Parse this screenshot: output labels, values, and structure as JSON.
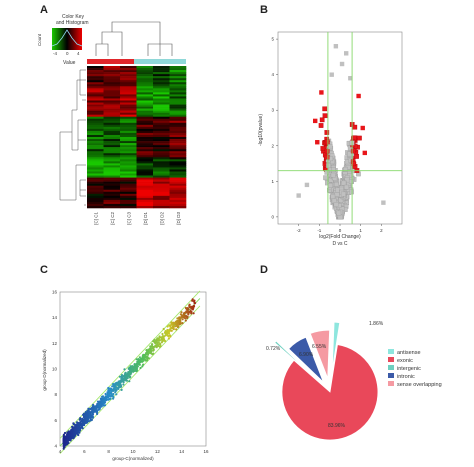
{
  "panels": {
    "a": "A",
    "b": "B",
    "c": "C",
    "d": "D"
  },
  "heatmap": {
    "key_title_line1": "Color Key",
    "key_title_line2": "and Histogram",
    "key_ylabel": "Count",
    "key_xlabel": "Value",
    "key_ticks": [
      "-4",
      "0",
      "4"
    ],
    "sample_labels": [
      "[C] C1",
      "[C] C2",
      "[C] C3",
      "[D] D1",
      "[D] D2",
      "[D] D3"
    ],
    "group_colors": [
      "#e0262b",
      "#8fd8d8"
    ],
    "colors": {
      "low": "#19c800",
      "mid": "#000000",
      "high": "#ee0000"
    }
  },
  "chart_data": [
    {
      "type": "scatter",
      "panel": "B",
      "xlabel": "log2(Fold Change)",
      "xlabel2": "D vs C",
      "ylabel": "-log10(pvalue)",
      "xlim": [
        -3,
        3
      ],
      "ylim": [
        -0.2,
        5.2
      ],
      "xticks": [
        "-2",
        "-1",
        "0",
        "1",
        "2"
      ],
      "yticks": [
        "0",
        "1",
        "2",
        "3",
        "4",
        "5"
      ],
      "thresholds": {
        "x": [
          -0.585,
          0.585
        ],
        "y": 1.3
      },
      "colors": {
        "significant": "#e8161a",
        "not_significant": "#c0c0c0",
        "threshold": "#86d86a"
      }
    },
    {
      "type": "scatter",
      "panel": "C",
      "xlabel": "group-C(normalized)",
      "ylabel": "group-D(normalized)",
      "xlim": [
        4,
        16
      ],
      "ylim": [
        4,
        16
      ],
      "xticks": [
        "4",
        "6",
        "8",
        "10",
        "12",
        "14",
        "16"
      ],
      "yticks": [
        "4",
        "6",
        "8",
        "10",
        "12",
        "14",
        "16"
      ]
    },
    {
      "type": "pie",
      "panel": "D",
      "slices": [
        {
          "label": "antisense",
          "value": 1.86,
          "text": "1.86%",
          "color": "#8ee6de"
        },
        {
          "label": "exonic",
          "value": 83.96,
          "text": "83.96%",
          "color": "#e9485a"
        },
        {
          "label": "intergenic",
          "value": 0.72,
          "text": "0.72%",
          "color": "#6ed0c0"
        },
        {
          "label": "intronic",
          "value": 6.9,
          "text": "6.90%",
          "color": "#3b5aa8"
        },
        {
          "label": "sense overlapping",
          "value": 6.55,
          "text": "6.55%",
          "color": "#f59aa2"
        }
      ]
    }
  ]
}
